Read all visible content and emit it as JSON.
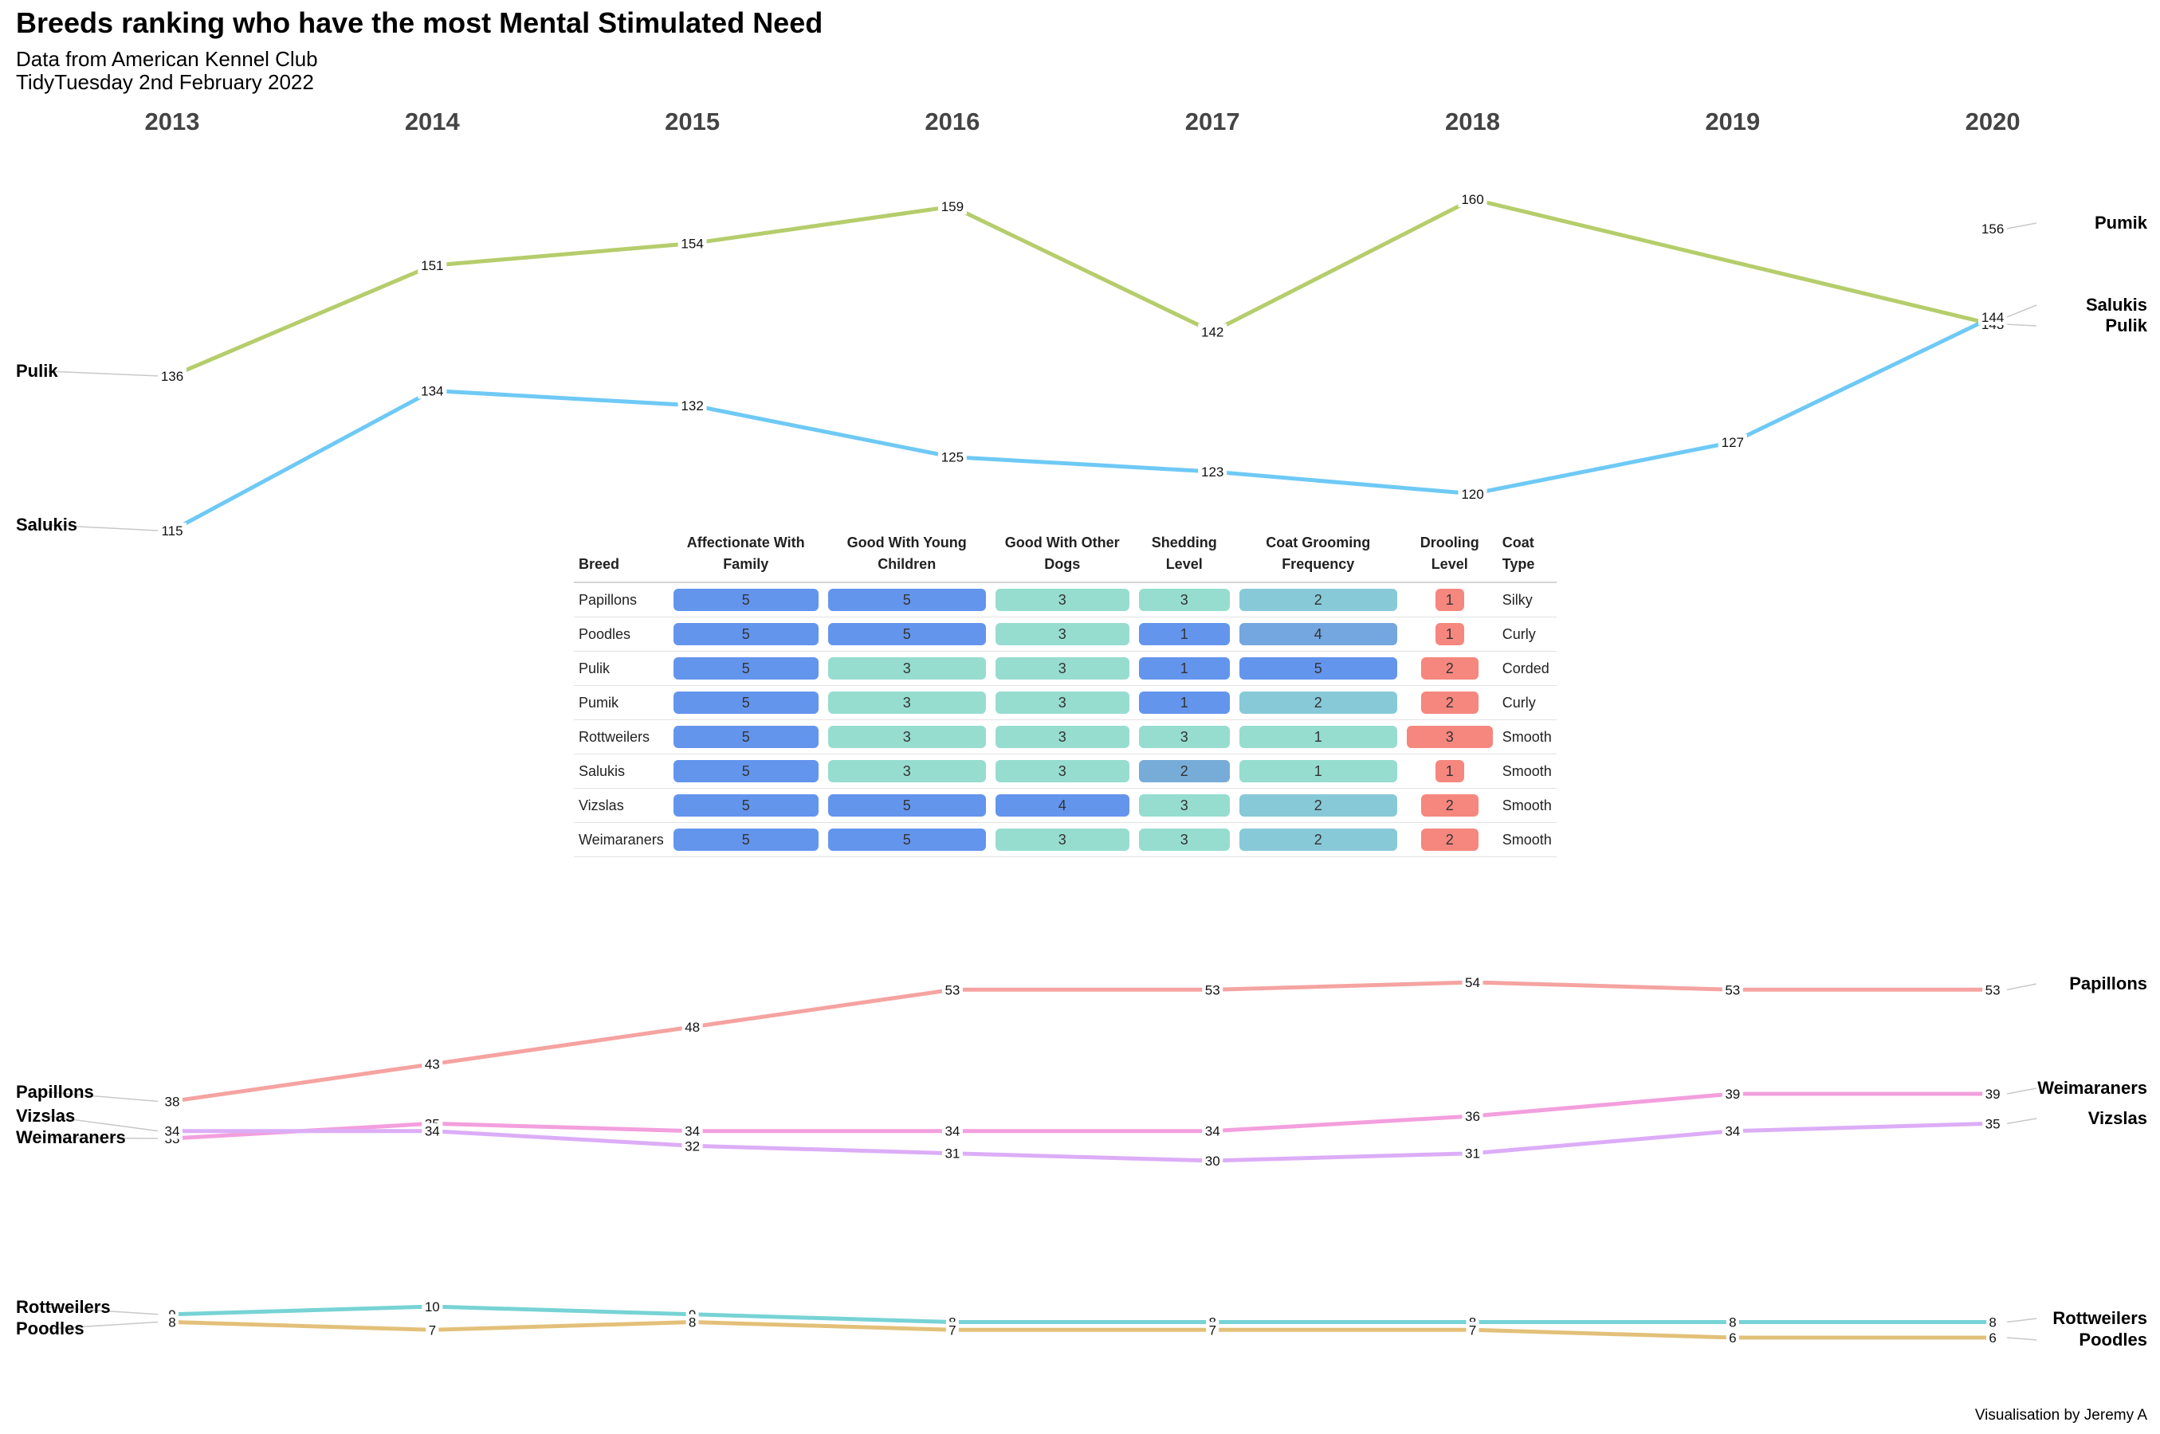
{
  "title": "Breeds ranking who have the most Mental Stimulated Need",
  "subtitle_line1": "Data from American Kennel Club",
  "subtitle_line2": "TidyTuesday 2nd February 2022",
  "caption": "Visualisation by Jeremy A",
  "chart_data": {
    "type": "line",
    "chart_kind": "bump / slope chart of breed popularity ranks",
    "x": [
      "2013",
      "2014",
      "2015",
      "2016",
      "2017",
      "2018",
      "2019",
      "2020"
    ],
    "y_reversed": true,
    "grid": false,
    "panels": [
      {
        "series": [
          {
            "name": "Pulik",
            "color": "#b5cd6b",
            "values": [
              136,
              151,
              154,
              159,
              142,
              160,
              null,
              143
            ]
          },
          {
            "name": "Salukis",
            "color": "#6ec9f5",
            "values": [
              115,
              134,
              132,
              125,
              123,
              120,
              127,
              144
            ]
          },
          {
            "name": "Pumik",
            "color": "#ffc39a",
            "values": [
              null,
              null,
              null,
              null,
              null,
              null,
              null,
              156
            ]
          }
        ]
      },
      {
        "series": [
          {
            "name": "Papillons",
            "color": "#f5a3a1",
            "values": [
              38,
              43,
              48,
              53,
              53,
              54,
              53,
              53
            ]
          },
          {
            "name": "Weimaraners",
            "color": "#f39fdd",
            "values": [
              33,
              35,
              34,
              34,
              34,
              36,
              39,
              39
            ]
          },
          {
            "name": "Vizslas",
            "color": "#dcadf7",
            "values": [
              34,
              34,
              32,
              31,
              30,
              31,
              34,
              35
            ]
          }
        ]
      },
      {
        "series": [
          {
            "name": "Rottweilers",
            "color": "#77d3d5",
            "values": [
              9,
              10,
              9,
              8,
              8,
              8,
              8,
              8
            ]
          },
          {
            "name": "Poodles",
            "color": "#e3c079",
            "values": [
              8,
              7,
              8,
              7,
              7,
              7,
              6,
              6
            ]
          }
        ]
      }
    ]
  },
  "table": {
    "columns": [
      {
        "key": "breed",
        "label": "Breed"
      },
      {
        "key": "affectionate",
        "label": "Affectionate With Family",
        "line1": "Affectionate With",
        "line2": "Family"
      },
      {
        "key": "children",
        "label": "Good With Young Children",
        "line1": "Good With Young",
        "line2": "Children"
      },
      {
        "key": "dogs",
        "label": "Good With Other Dogs",
        "line1": "Good With Other",
        "line2": "Dogs"
      },
      {
        "key": "shedding",
        "label": "Shedding Level",
        "line1": "Shedding",
        "line2": "Level"
      },
      {
        "key": "grooming",
        "label": "Coat Grooming Frequency",
        "line1": "Coat Grooming",
        "line2": "Frequency"
      },
      {
        "key": "drooling",
        "label": "Drooling Level",
        "line1": "Drooling",
        "line2": "Level"
      },
      {
        "key": "coat",
        "label": "Coat Type",
        "line1": "Coat",
        "line2": "Type"
      }
    ],
    "rows": [
      {
        "breed": "Papillons",
        "affectionate": 5,
        "children": 5,
        "dogs": 3,
        "shedding": 3,
        "grooming": 2,
        "drooling": 1,
        "coat": "Silky"
      },
      {
        "breed": "Poodles",
        "affectionate": 5,
        "children": 5,
        "dogs": 3,
        "shedding": 1,
        "grooming": 4,
        "drooling": 1,
        "coat": "Curly"
      },
      {
        "breed": "Pulik",
        "affectionate": 5,
        "children": 3,
        "dogs": 3,
        "shedding": 1,
        "grooming": 5,
        "drooling": 2,
        "coat": "Corded"
      },
      {
        "breed": "Pumik",
        "affectionate": 5,
        "children": 3,
        "dogs": 3,
        "shedding": 1,
        "grooming": 2,
        "drooling": 2,
        "coat": "Curly"
      },
      {
        "breed": "Rottweilers",
        "affectionate": 5,
        "children": 3,
        "dogs": 3,
        "shedding": 3,
        "grooming": 1,
        "drooling": 3,
        "coat": "Smooth"
      },
      {
        "breed": "Salukis",
        "affectionate": 5,
        "children": 3,
        "dogs": 3,
        "shedding": 2,
        "grooming": 1,
        "drooling": 1,
        "coat": "Smooth"
      },
      {
        "breed": "Vizslas",
        "affectionate": 5,
        "children": 5,
        "dogs": 4,
        "shedding": 3,
        "grooming": 2,
        "drooling": 2,
        "coat": "Smooth"
      },
      {
        "breed": "Weimaraners",
        "affectionate": 5,
        "children": 5,
        "dogs": 3,
        "shedding": 3,
        "grooming": 2,
        "drooling": 2,
        "coat": "Smooth"
      }
    ],
    "colors": {
      "blue": "#6495ed",
      "teal": "#96ddd0",
      "shedding_mid": "#77acd8",
      "grooming_mid": "#88c9d8",
      "grooming_high": "#74a6e0",
      "drooling": "#f5877e"
    }
  }
}
